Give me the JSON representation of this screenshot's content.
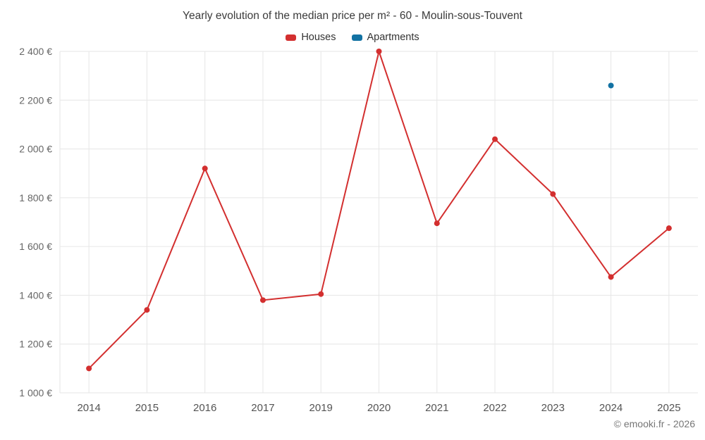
{
  "chart_data": {
    "type": "line",
    "title": "Yearly evolution of the median price per m² - 60 - Moulin-sous-Touvent",
    "categories": [
      "2014",
      "2015",
      "2016",
      "2017",
      "2019",
      "2020",
      "2021",
      "2022",
      "2023",
      "2024",
      "2025"
    ],
    "series": [
      {
        "name": "Houses",
        "color": "#d32f2f",
        "type": "line",
        "values": [
          1100,
          1340,
          1920,
          1380,
          1405,
          2400,
          1695,
          2040,
          1815,
          1475,
          1675
        ]
      },
      {
        "name": "Apartments",
        "color": "#1272a3",
        "type": "scatter",
        "points": [
          {
            "category": "2024",
            "value": 2260
          }
        ]
      }
    ],
    "xlabel": "",
    "ylabel": "",
    "ylim": [
      1000,
      2400
    ],
    "y_tick_step": 200,
    "y_tick_labels": [
      "1 000 €",
      "1 200 €",
      "1 400 €",
      "1 600 €",
      "1 800 €",
      "2 000 €",
      "2 200 €",
      "2 400 €"
    ],
    "grid": true,
    "grid_color": "#e6e6e6",
    "legend_position": "top"
  },
  "footer": {
    "copyright": "© emooki.fr - 2026"
  }
}
